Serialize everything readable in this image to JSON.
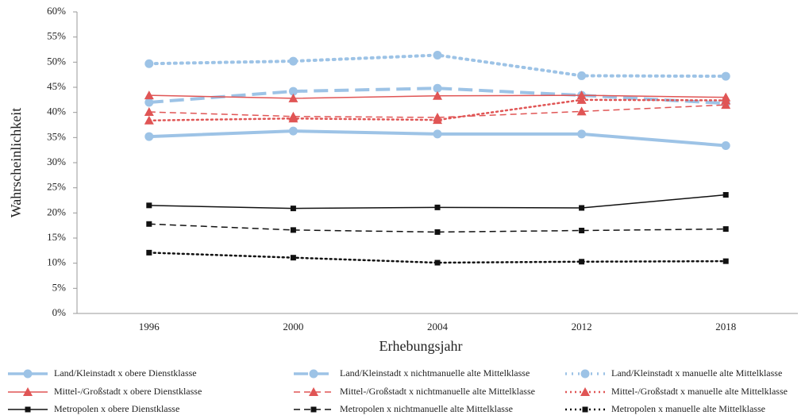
{
  "chart_data": {
    "type": "line",
    "x_label": "Erhebungsjahr",
    "y_label": "Wahrscheinlichkeit",
    "categories": [
      "1996",
      "2000",
      "2004",
      "2012",
      "2018"
    ],
    "ylim": [
      0,
      60
    ],
    "yticks": [
      {
        "value": 0,
        "label": "0%"
      },
      {
        "value": 5,
        "label": "5%"
      },
      {
        "value": 10,
        "label": "10%"
      },
      {
        "value": 15,
        "label": "15%"
      },
      {
        "value": 20,
        "label": "20%"
      },
      {
        "value": 25,
        "label": "25%"
      },
      {
        "value": 30,
        "label": "30%"
      },
      {
        "value": 35,
        "label": "35%"
      },
      {
        "value": 40,
        "label": "40%"
      },
      {
        "value": 45,
        "label": "45%"
      },
      {
        "value": 50,
        "label": "50%"
      },
      {
        "value": 55,
        "label": "55%"
      },
      {
        "value": 60,
        "label": "60%"
      }
    ],
    "series": [
      {
        "name": "Land/Kleinstadt  x obere Dienstklasse",
        "color": "#9dc3e6",
        "dash": "solid",
        "marker": "circle",
        "line_width": 4,
        "values": [
          35.2,
          36.3,
          35.7,
          35.7,
          33.4
        ]
      },
      {
        "name": "Land/Kleinstadt  x nichtmanuelle  alte Mittelklasse",
        "color": "#9dc3e6",
        "dash": "dashed",
        "marker": "circle",
        "line_width": 4,
        "values": [
          42.0,
          44.2,
          44.8,
          43.4,
          41.8
        ]
      },
      {
        "name": "Land/Kleinstadt  x manuelle alte Mittelklasse",
        "color": "#9dc3e6",
        "dash": "dotted",
        "marker": "circle",
        "line_width": 4,
        "values": [
          49.7,
          50.2,
          51.4,
          47.3,
          47.2
        ]
      },
      {
        "name": "Mittel-/Großstadt x obere Dienstklasse",
        "color": "#e05555",
        "dash": "solid",
        "marker": "triangle",
        "line_width": 1.5,
        "values": [
          43.4,
          42.8,
          43.3,
          43.4,
          43.0
        ]
      },
      {
        "name": "Mittel-/Großstadt x nichtmanuelle  alte Mittelklasse",
        "color": "#e05555",
        "dash": "dashed",
        "marker": "triangle",
        "line_width": 1.5,
        "values": [
          40.1,
          39.2,
          39.0,
          40.2,
          41.5
        ]
      },
      {
        "name": "Mittel-/Großstadt x manuelle alte Mittelklasse",
        "color": "#e05555",
        "dash": "dotted",
        "marker": "triangle",
        "line_width": 2.5,
        "values": [
          38.4,
          38.8,
          38.5,
          42.5,
          42.4
        ]
      },
      {
        "name": "Metropolen x obere Dienstklasse",
        "color": "#111111",
        "dash": "solid",
        "marker": "square",
        "line_width": 1.5,
        "values": [
          21.5,
          20.9,
          21.1,
          21.0,
          23.6
        ]
      },
      {
        "name": "Metropolen x nichtmanuelle  alte Mittelklasse",
        "color": "#111111",
        "dash": "dashed",
        "marker": "square",
        "line_width": 1.5,
        "values": [
          17.8,
          16.6,
          16.2,
          16.5,
          16.8
        ]
      },
      {
        "name": "Metropolen x manuelle alte Mittelklasse",
        "color": "#111111",
        "dash": "dotted",
        "marker": "square",
        "line_width": 2.5,
        "values": [
          12.1,
          11.1,
          10.1,
          10.3,
          10.4
        ]
      }
    ]
  }
}
